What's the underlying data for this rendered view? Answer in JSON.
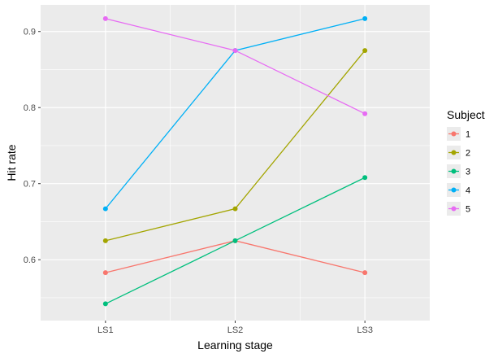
{
  "chart_data": {
    "type": "line",
    "title": "",
    "xlabel": "Learning stage",
    "ylabel": "Hit rate",
    "categories": [
      "LS1",
      "LS2",
      "LS3"
    ],
    "yticks": [
      "0.6",
      "0.7",
      "0.8",
      "0.9"
    ],
    "ylim": [
      0.52,
      0.935
    ],
    "grid": true,
    "legend": {
      "title": "Subject",
      "placement": "right"
    },
    "series": [
      {
        "name": "1",
        "color": "#F8766D",
        "values": [
          0.583,
          0.625,
          0.583
        ]
      },
      {
        "name": "2",
        "color": "#A3A500",
        "values": [
          0.625,
          0.667,
          0.875
        ]
      },
      {
        "name": "3",
        "color": "#00BF7D",
        "values": [
          0.542,
          0.625,
          0.708
        ]
      },
      {
        "name": "4",
        "color": "#00B0F6",
        "values": [
          0.667,
          0.875,
          0.917
        ]
      },
      {
        "name": "5",
        "color": "#E76BF3",
        "values": [
          0.917,
          0.875,
          0.792
        ]
      }
    ]
  }
}
